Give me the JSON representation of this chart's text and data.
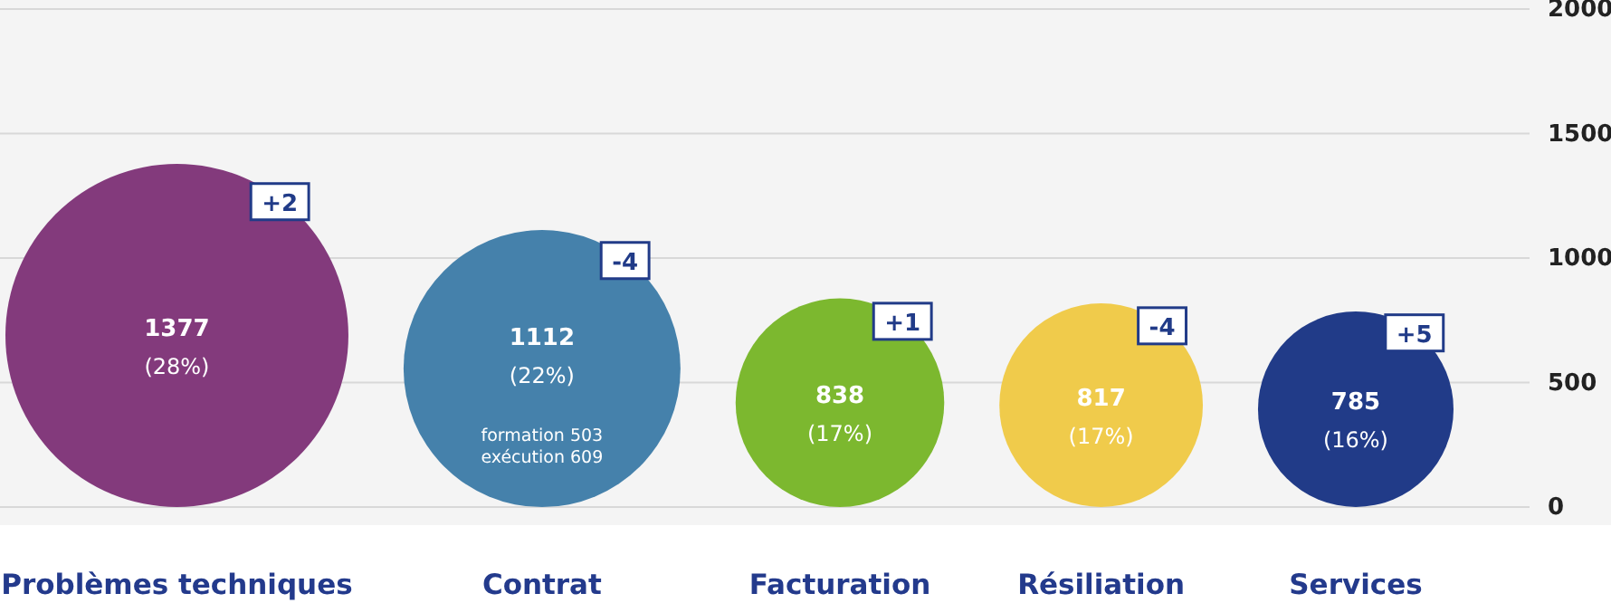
{
  "chart_data": {
    "type": "bubble",
    "categories": [
      "Problèmes techniques",
      "Contrat",
      "Facturation",
      "Résiliation",
      "Services"
    ],
    "values": [
      689,
      556,
      419,
      409,
      393
    ],
    "sizes": [
      1,
      0.652,
      0.37,
      0.352,
      0.325
    ],
    "colors": [
      "#833a7c",
      "#4581ab",
      "#7cb82f",
      "#f0cb4b",
      "#213b88"
    ],
    "ylim": [
      0,
      2000
    ],
    "yticks": [
      0,
      500,
      1000,
      1500,
      2000
    ],
    "grid": "y",
    "annotations": [
      "+2",
      "-4",
      "+1",
      "-4",
      "+5",
      {
        "text": "1377",
        "x": "Problèmes techniques",
        "y": 689
      },
      {
        "text": "(28%)",
        "x": "Problèmes techniques",
        "y": 689
      },
      {
        "text": "1112",
        "x": "Contrat",
        "y": 556
      },
      {
        "text": "(22%)",
        "x": "Contrat",
        "y": 556
      },
      "formation 503",
      "exécution 609",
      {
        "text": "838",
        "x": "Facturation",
        "y": 419
      },
      {
        "text": "(17%)",
        "x": "Facturation",
        "y": 419
      },
      {
        "text": "817",
        "x": "Résiliation",
        "y": 409
      },
      {
        "text": "(17%)",
        "x": "Résiliation",
        "y": 409
      },
      {
        "text": "785",
        "x": "Services",
        "y": 393
      },
      {
        "text": "(16%)",
        "x": "Services",
        "y": 393
      }
    ]
  }
}
